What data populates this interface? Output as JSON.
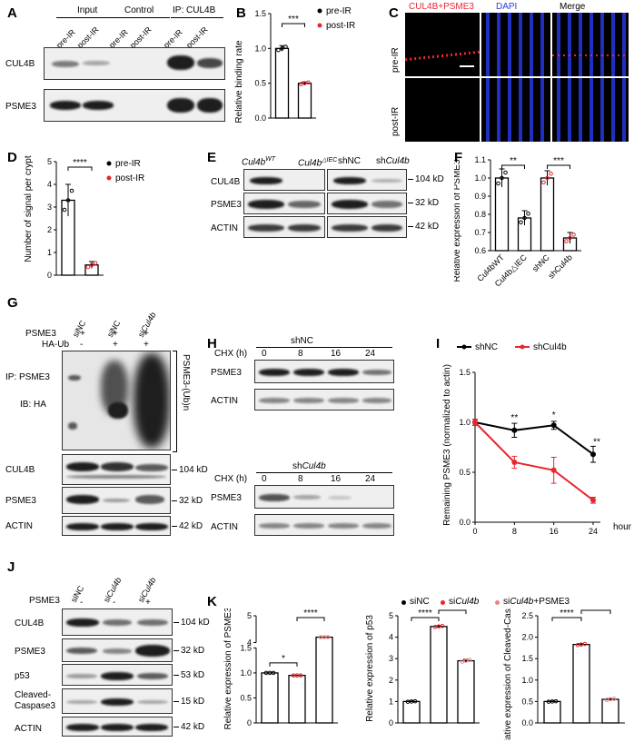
{
  "panels": [
    "A",
    "B",
    "C",
    "D",
    "E",
    "F",
    "G",
    "H",
    "I",
    "J",
    "K"
  ],
  "A": {
    "headers": [
      "Input",
      "Control",
      "IP: CUL4B"
    ],
    "lanes": [
      "pre-IR",
      "post-IR",
      "pre-IR",
      "post-IR",
      "pre-IR",
      "post-IR"
    ],
    "rows": [
      "CUL4B",
      "PSME3"
    ]
  },
  "legend_ir": {
    "pre": "pre-IR",
    "post": "post-IR"
  },
  "C": {
    "headers": [
      "CUL4B+PSME3",
      "DAPI",
      "Merge"
    ],
    "rows": [
      "pre-IR",
      "post-IR"
    ],
    "colors": {
      "red": "#e8262e",
      "blue": "#2a3bd6"
    }
  },
  "E": {
    "lanes": [
      "Cul4b",
      "WT",
      "Cul4b",
      "△IEC",
      "shNC",
      "sh",
      "Cul4b"
    ],
    "rows": [
      "CUL4B",
      "PSME3",
      "ACTIN"
    ],
    "kd": [
      "104 kD",
      "32 kD",
      "42 kD"
    ]
  },
  "G": {
    "lanes": [
      "siNC",
      "siNC",
      "si",
      "Cul4b"
    ],
    "treat": [
      {
        "name": "PSME3",
        "marks": [
          "+",
          "+",
          "+"
        ]
      },
      {
        "name": "HA-Ub",
        "marks": [
          "-",
          "+",
          "+"
        ]
      }
    ],
    "ip": [
      "IP: PSME3",
      "IB: HA"
    ],
    "bracket": "PSME3-(Ub)n",
    "rows": [
      "CUL4B",
      "PSME3",
      "ACTIN"
    ],
    "kd": [
      "104 kD",
      "32 kD",
      "42 kD"
    ]
  },
  "H": {
    "top": {
      "title": "shNC",
      "cond": "CHX (h)",
      "times": [
        "0",
        "8",
        "16",
        "24"
      ],
      "rows": [
        "PSME3",
        "ACTIN"
      ]
    },
    "bottom": {
      "title_a": "sh",
      "title_b": "Cul4b",
      "cond": "CHX (h)",
      "times": [
        "0",
        "8",
        "16",
        "24"
      ],
      "rows": [
        "PSME3",
        "ACTIN"
      ]
    }
  },
  "J": {
    "lanes": [
      "siNC",
      "si",
      "Cul4b",
      "si",
      "Cul4b"
    ],
    "treat": {
      "name": "PSME3",
      "marks": [
        "-",
        "-",
        "+"
      ]
    },
    "rows": [
      "CUL4B",
      "PSME3",
      "p53",
      "Cleaved-",
      "Caspase3",
      "ACTIN"
    ],
    "kd": [
      "104 kD",
      "32 kD",
      "53 kD",
      "15 kD",
      "42 kD"
    ]
  },
  "K_legend": [
    "siNC",
    "si",
    "Cul4b",
    "si",
    "Cul4b",
    "+PSME3"
  ],
  "colors": {
    "pre": "#000000",
    "post": "#e8262e",
    "siNC": "#000000",
    "siCul4b": "#e8262e",
    "siCul4bPSME3": "#f08080"
  },
  "chart_data": [
    {
      "id": "B",
      "type": "bar",
      "categories": [
        "pre-IR",
        "post-IR"
      ],
      "values": [
        1.0,
        0.5
      ],
      "errors": [
        0.04,
        0.02
      ],
      "ylabel": "Relative binding rate",
      "ylim": [
        0,
        1.5
      ],
      "yticks": [
        "0.0",
        "0.5",
        "1.0",
        "1.5"
      ],
      "sig": [
        "***"
      ]
    },
    {
      "id": "D",
      "type": "bar",
      "categories": [
        "pre-IR",
        "post-IR"
      ],
      "values": [
        3.3,
        0.45
      ],
      "errors": [
        0.7,
        0.15
      ],
      "ylabel": "Number of signal per crypt",
      "ylim": [
        0,
        5
      ],
      "yticks": [
        "0",
        "1",
        "2",
        "3",
        "4",
        "5"
      ],
      "sig": [
        "****"
      ]
    },
    {
      "id": "F",
      "type": "bar",
      "categories": [
        "Cul4bWT",
        "Cul4b△IEC",
        "shNC",
        "shCul4b"
      ],
      "values": [
        1.0,
        0.78,
        1.0,
        0.67
      ],
      "errors": [
        0.05,
        0.04,
        0.04,
        0.03
      ],
      "ylabel": "Relative expression of PSME3",
      "ylim": [
        0.6,
        1.1
      ],
      "yticks": [
        "0.6",
        "0.7",
        "0.8",
        "0.9",
        "1.0",
        "1.1"
      ],
      "sig": [
        "**",
        "***"
      ]
    },
    {
      "id": "I",
      "type": "line",
      "x": [
        0,
        8,
        16,
        24
      ],
      "series": [
        {
          "name": "shNC",
          "values": [
            1.0,
            0.92,
            0.97,
            0.68
          ],
          "errors": [
            0.03,
            0.07,
            0.04,
            0.08
          ]
        },
        {
          "name": "shCul4b",
          "values": [
            1.0,
            0.6,
            0.52,
            0.22
          ],
          "errors": [
            0.03,
            0.06,
            0.13,
            0.03
          ]
        }
      ],
      "ylabel": "Remaining PSME3 (normalized to actin)",
      "xlabel": "hour",
      "ylim": [
        0,
        1.5
      ],
      "yticks": [
        "0.0",
        "0.5",
        "1.0",
        "1.5"
      ],
      "xticks": [
        "0",
        "8",
        "16",
        "24"
      ],
      "sig": [
        "**",
        "*",
        "**"
      ]
    },
    {
      "id": "K1",
      "type": "bar",
      "categories": [
        "siNC",
        "siCul4b",
        "siCul4b+PSME3"
      ],
      "values": [
        1.0,
        0.95,
        4.2
      ],
      "errors": [
        0.02,
        0.02,
        0.05
      ],
      "ylabel": "Relative expression of PSME3",
      "ylim": [
        0,
        5
      ],
      "yticks": [
        "0",
        "0.5",
        "1.0",
        "1.5",
        "4",
        "5"
      ],
      "sig": [
        "*",
        "****"
      ]
    },
    {
      "id": "K2",
      "type": "bar",
      "categories": [
        "siNC",
        "siCul4b",
        "siCul4b+PSME3"
      ],
      "values": [
        1.0,
        4.5,
        2.9
      ],
      "errors": [
        0.02,
        0.04,
        0.07
      ],
      "ylabel": "Relative expression of p53",
      "ylim": [
        0,
        5
      ],
      "yticks": [
        "0",
        "1",
        "2",
        "3",
        "4",
        "5"
      ],
      "sig": [
        "****",
        "****"
      ]
    },
    {
      "id": "K3",
      "type": "bar",
      "categories": [
        "siNC",
        "siCul4b",
        "siCul4b+PSME3"
      ],
      "values": [
        0.5,
        1.83,
        0.55
      ],
      "errors": [
        0.01,
        0.02,
        0.02
      ],
      "ylabel": "Relative expression of Cleaved-Caspase3",
      "ylim": [
        0,
        2.5
      ],
      "yticks": [
        "0.0",
        "0.5",
        "1.0",
        "1.5",
        "2.0",
        "2.5"
      ],
      "sig": [
        "****",
        "****"
      ]
    }
  ]
}
